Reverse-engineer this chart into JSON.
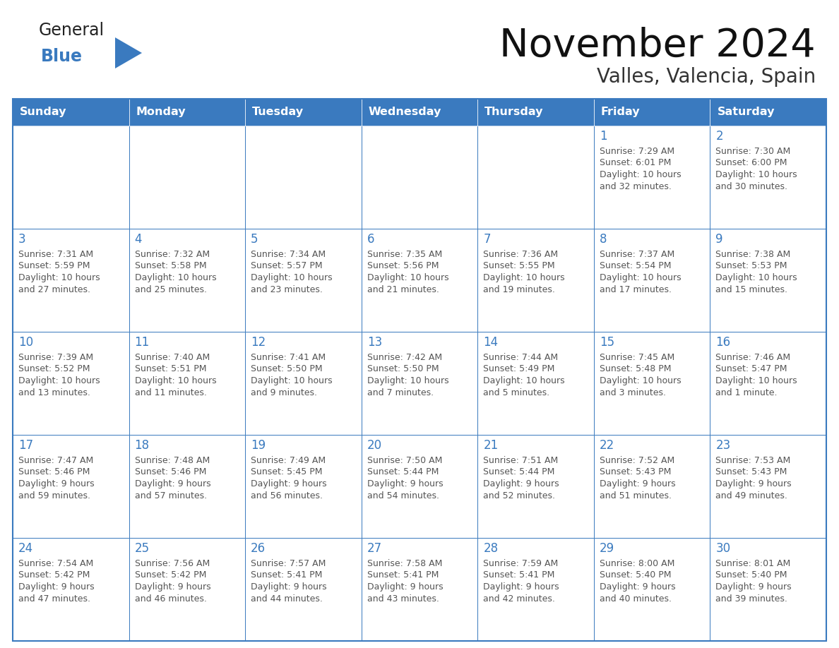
{
  "title": "November 2024",
  "subtitle": "Valles, Valencia, Spain",
  "header_color": "#3a7abf",
  "header_text_color": "#ffffff",
  "cell_bg_color": "#ffffff",
  "border_color": "#3a7abf",
  "day_number_color": "#3a7abf",
  "cell_text_color": "#555555",
  "days_of_week": [
    "Sunday",
    "Monday",
    "Tuesday",
    "Wednesday",
    "Thursday",
    "Friday",
    "Saturday"
  ],
  "weeks": [
    [
      {
        "day": "",
        "sunrise": "",
        "sunset": "",
        "daylight": ""
      },
      {
        "day": "",
        "sunrise": "",
        "sunset": "",
        "daylight": ""
      },
      {
        "day": "",
        "sunrise": "",
        "sunset": "",
        "daylight": ""
      },
      {
        "day": "",
        "sunrise": "",
        "sunset": "",
        "daylight": ""
      },
      {
        "day": "",
        "sunrise": "",
        "sunset": "",
        "daylight": ""
      },
      {
        "day": "1",
        "sunrise": "7:29 AM",
        "sunset": "6:01 PM",
        "daylight": "10 hours and 32 minutes."
      },
      {
        "day": "2",
        "sunrise": "7:30 AM",
        "sunset": "6:00 PM",
        "daylight": "10 hours and 30 minutes."
      }
    ],
    [
      {
        "day": "3",
        "sunrise": "7:31 AM",
        "sunset": "5:59 PM",
        "daylight": "10 hours and 27 minutes."
      },
      {
        "day": "4",
        "sunrise": "7:32 AM",
        "sunset": "5:58 PM",
        "daylight": "10 hours and 25 minutes."
      },
      {
        "day": "5",
        "sunrise": "7:34 AM",
        "sunset": "5:57 PM",
        "daylight": "10 hours and 23 minutes."
      },
      {
        "day": "6",
        "sunrise": "7:35 AM",
        "sunset": "5:56 PM",
        "daylight": "10 hours and 21 minutes."
      },
      {
        "day": "7",
        "sunrise": "7:36 AM",
        "sunset": "5:55 PM",
        "daylight": "10 hours and 19 minutes."
      },
      {
        "day": "8",
        "sunrise": "7:37 AM",
        "sunset": "5:54 PM",
        "daylight": "10 hours and 17 minutes."
      },
      {
        "day": "9",
        "sunrise": "7:38 AM",
        "sunset": "5:53 PM",
        "daylight": "10 hours and 15 minutes."
      }
    ],
    [
      {
        "day": "10",
        "sunrise": "7:39 AM",
        "sunset": "5:52 PM",
        "daylight": "10 hours and 13 minutes."
      },
      {
        "day": "11",
        "sunrise": "7:40 AM",
        "sunset": "5:51 PM",
        "daylight": "10 hours and 11 minutes."
      },
      {
        "day": "12",
        "sunrise": "7:41 AM",
        "sunset": "5:50 PM",
        "daylight": "10 hours and 9 minutes."
      },
      {
        "day": "13",
        "sunrise": "7:42 AM",
        "sunset": "5:50 PM",
        "daylight": "10 hours and 7 minutes."
      },
      {
        "day": "14",
        "sunrise": "7:44 AM",
        "sunset": "5:49 PM",
        "daylight": "10 hours and 5 minutes."
      },
      {
        "day": "15",
        "sunrise": "7:45 AM",
        "sunset": "5:48 PM",
        "daylight": "10 hours and 3 minutes."
      },
      {
        "day": "16",
        "sunrise": "7:46 AM",
        "sunset": "5:47 PM",
        "daylight": "10 hours and 1 minute."
      }
    ],
    [
      {
        "day": "17",
        "sunrise": "7:47 AM",
        "sunset": "5:46 PM",
        "daylight": "9 hours and 59 minutes."
      },
      {
        "day": "18",
        "sunrise": "7:48 AM",
        "sunset": "5:46 PM",
        "daylight": "9 hours and 57 minutes."
      },
      {
        "day": "19",
        "sunrise": "7:49 AM",
        "sunset": "5:45 PM",
        "daylight": "9 hours and 56 minutes."
      },
      {
        "day": "20",
        "sunrise": "7:50 AM",
        "sunset": "5:44 PM",
        "daylight": "9 hours and 54 minutes."
      },
      {
        "day": "21",
        "sunrise": "7:51 AM",
        "sunset": "5:44 PM",
        "daylight": "9 hours and 52 minutes."
      },
      {
        "day": "22",
        "sunrise": "7:52 AM",
        "sunset": "5:43 PM",
        "daylight": "9 hours and 51 minutes."
      },
      {
        "day": "23",
        "sunrise": "7:53 AM",
        "sunset": "5:43 PM",
        "daylight": "9 hours and 49 minutes."
      }
    ],
    [
      {
        "day": "24",
        "sunrise": "7:54 AM",
        "sunset": "5:42 PM",
        "daylight": "9 hours and 47 minutes."
      },
      {
        "day": "25",
        "sunrise": "7:56 AM",
        "sunset": "5:42 PM",
        "daylight": "9 hours and 46 minutes."
      },
      {
        "day": "26",
        "sunrise": "7:57 AM",
        "sunset": "5:41 PM",
        "daylight": "9 hours and 44 minutes."
      },
      {
        "day": "27",
        "sunrise": "7:58 AM",
        "sunset": "5:41 PM",
        "daylight": "9 hours and 43 minutes."
      },
      {
        "day": "28",
        "sunrise": "7:59 AM",
        "sunset": "5:41 PM",
        "daylight": "9 hours and 42 minutes."
      },
      {
        "day": "29",
        "sunrise": "8:00 AM",
        "sunset": "5:40 PM",
        "daylight": "9 hours and 40 minutes."
      },
      {
        "day": "30",
        "sunrise": "8:01 AM",
        "sunset": "5:40 PM",
        "daylight": "9 hours and 39 minutes."
      }
    ]
  ]
}
